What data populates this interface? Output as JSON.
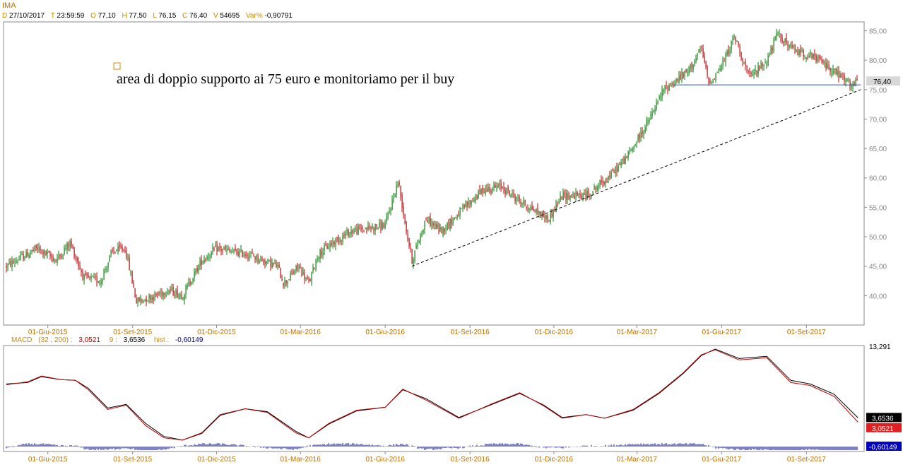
{
  "header": {
    "symbol": "IMA",
    "fields": [
      {
        "key": "D",
        "value": "27/10/2017"
      },
      {
        "key": "T",
        "value": "23:59:59"
      },
      {
        "key": "O",
        "value": "77,10"
      },
      {
        "key": "H",
        "value": "77,50"
      },
      {
        "key": "L",
        "value": "76,15"
      },
      {
        "key": "C",
        "value": "76,40"
      },
      {
        "key": "V",
        "value": "54695"
      },
      {
        "key": "Var%",
        "value": "-0,90791"
      }
    ]
  },
  "annotation": "area di doppio supporto ai 75 euro e monitoriamo per il buy",
  "macd_header": {
    "label": "MACD",
    "params": "(32 , 200) :",
    "macd_value": "3,0521",
    "signal_label": "9 :",
    "signal_value": "3,6536",
    "hist_label": "hist :",
    "hist_value": "-0,60149"
  },
  "colors": {
    "up": "#008000",
    "down": "#c00000",
    "macd": "#c00000",
    "signal": "#000000",
    "hist": "#00008b",
    "support": "#3050a0"
  },
  "chart_data": [
    {
      "type": "candlestick",
      "title": "IMA",
      "x_ticks": [
        "01-Giu-2015",
        "01-Set-2015",
        "01-Dic-2015",
        "01-Mar-2016",
        "01-Giu-2016",
        "01-Set-2016",
        "01-Dic-2016",
        "01-Mar-2017",
        "01-Giu-2017",
        "01-Set-2017"
      ],
      "y_ticks": [
        "40,00",
        "45,00",
        "50,00",
        "55,00",
        "60,00",
        "65,00",
        "70,00",
        "75,00",
        "80,00",
        "85,00"
      ],
      "ylim": [
        35,
        86.5
      ],
      "last_price_label": "76,40",
      "close_path": [
        [
          "2015-04-17",
          45.0
        ],
        [
          "2015-05-20",
          48.0
        ],
        [
          "2015-06-10",
          46.0
        ],
        [
          "2015-06-25",
          49.0
        ],
        [
          "2015-07-10",
          43.0
        ],
        [
          "2015-07-28",
          42.5
        ],
        [
          "2015-08-10",
          47.5
        ],
        [
          "2015-08-24",
          48.0
        ],
        [
          "2015-09-05",
          39.0
        ],
        [
          "2015-09-25",
          40.0
        ],
        [
          "2015-10-10",
          41.0
        ],
        [
          "2015-10-25",
          40.0
        ],
        [
          "2015-11-15",
          46.0
        ],
        [
          "2015-12-01",
          48.0
        ],
        [
          "2015-12-15",
          47.5
        ],
        [
          "2016-01-05",
          47.0
        ],
        [
          "2016-01-20",
          46.0
        ],
        [
          "2016-02-05",
          45.0
        ],
        [
          "2016-02-12",
          42.0
        ],
        [
          "2016-02-28",
          45.0
        ],
        [
          "2016-03-10",
          42.0
        ],
        [
          "2016-03-20",
          47.0
        ],
        [
          "2016-04-05",
          49.0
        ],
        [
          "2016-04-25",
          51.0
        ],
        [
          "2016-05-15",
          51.5
        ],
        [
          "2016-06-01",
          52.0
        ],
        [
          "2016-06-15",
          59.5
        ],
        [
          "2016-06-24",
          51.0
        ],
        [
          "2016-06-30",
          46.0
        ],
        [
          "2016-07-15",
          53.0
        ],
        [
          "2016-08-01",
          51.0
        ],
        [
          "2016-08-20",
          54.0
        ],
        [
          "2016-09-15",
          58.0
        ],
        [
          "2016-10-05",
          58.5
        ],
        [
          "2016-10-25",
          56.0
        ],
        [
          "2016-11-15",
          54.0
        ],
        [
          "2016-11-25",
          53.0
        ],
        [
          "2016-12-10",
          57.0
        ],
        [
          "2017-01-05",
          57.0
        ],
        [
          "2017-02-01",
          60.5
        ],
        [
          "2017-02-20",
          64.0
        ],
        [
          "2017-03-15",
          70.0
        ],
        [
          "2017-03-30",
          75.0
        ],
        [
          "2017-04-25",
          78.0
        ],
        [
          "2017-05-10",
          82.0
        ],
        [
          "2017-05-18",
          76.0
        ],
        [
          "2017-06-01",
          79.0
        ],
        [
          "2017-06-15",
          84.0
        ],
        [
          "2017-07-01",
          77.0
        ],
        [
          "2017-07-20",
          80.0
        ],
        [
          "2017-08-01",
          84.5
        ],
        [
          "2017-08-15",
          82.0
        ],
        [
          "2017-09-15",
          80.0
        ],
        [
          "2017-10-10",
          77.0
        ],
        [
          "2017-10-20",
          75.5
        ],
        [
          "2017-10-27",
          76.4
        ]
      ],
      "support_line": {
        "y": 75.8,
        "from": "2017-04-10",
        "to": "2017-10-30"
      },
      "trend_line": {
        "from": [
          "2016-06-30",
          45.0
        ],
        "to": [
          "2017-10-30",
          75.0
        ]
      }
    },
    {
      "type": "line",
      "title": "MACD",
      "series": [
        {
          "name": "MACD",
          "values": [
            [
              "2015-04-17",
              8.2
            ],
            [
              "2015-05-10",
              8.6
            ],
            [
              "2015-05-25",
              9.4
            ],
            [
              "2015-06-15",
              8.9
            ],
            [
              "2015-07-01",
              8.8
            ],
            [
              "2015-07-15",
              7.5
            ],
            [
              "2015-08-05",
              4.8
            ],
            [
              "2015-08-25",
              5.4
            ],
            [
              "2015-09-15",
              2.6
            ],
            [
              "2015-10-05",
              0.9
            ],
            [
              "2015-10-25",
              0.6
            ],
            [
              "2015-11-15",
              1.6
            ],
            [
              "2015-12-05",
              4.1
            ],
            [
              "2016-01-01",
              4.9
            ],
            [
              "2016-01-25",
              4.4
            ],
            [
              "2016-02-25",
              1.6
            ],
            [
              "2016-03-10",
              0.9
            ],
            [
              "2016-04-01",
              2.9
            ],
            [
              "2016-05-01",
              4.7
            ],
            [
              "2016-06-01",
              5.1
            ],
            [
              "2016-06-20",
              7.6
            ],
            [
              "2016-07-15",
              6.1
            ],
            [
              "2016-08-20",
              3.6
            ],
            [
              "2016-09-25",
              5.6
            ],
            [
              "2016-10-25",
              7.1
            ],
            [
              "2016-11-20",
              5.3
            ],
            [
              "2016-12-10",
              3.6
            ],
            [
              "2017-01-05",
              4.1
            ],
            [
              "2017-01-25",
              3.6
            ],
            [
              "2017-02-25",
              4.8
            ],
            [
              "2017-03-25",
              7.1
            ],
            [
              "2017-04-20",
              9.8
            ],
            [
              "2017-05-10",
              12.3
            ],
            [
              "2017-05-25",
              13.0
            ],
            [
              "2017-06-20",
              11.6
            ],
            [
              "2017-07-20",
              11.9
            ],
            [
              "2017-08-15",
              8.5
            ],
            [
              "2017-09-05",
              8.1
            ],
            [
              "2017-10-01",
              6.6
            ],
            [
              "2017-10-27",
              3.05
            ]
          ]
        },
        {
          "name": "Signal",
          "values": [
            [
              "2015-04-17",
              8.3
            ],
            [
              "2015-05-10",
              8.5
            ],
            [
              "2015-05-25",
              9.3
            ],
            [
              "2015-06-15",
              8.9
            ],
            [
              "2015-07-01",
              8.8
            ],
            [
              "2015-07-15",
              7.7
            ],
            [
              "2015-08-05",
              5.0
            ],
            [
              "2015-08-25",
              5.5
            ],
            [
              "2015-09-15",
              2.9
            ],
            [
              "2015-10-05",
              1.1
            ],
            [
              "2015-10-25",
              0.6
            ],
            [
              "2015-11-15",
              1.5
            ],
            [
              "2015-12-05",
              4.0
            ],
            [
              "2016-01-01",
              4.9
            ],
            [
              "2016-01-25",
              4.5
            ],
            [
              "2016-02-25",
              1.8
            ],
            [
              "2016-03-10",
              0.9
            ],
            [
              "2016-04-01",
              2.8
            ],
            [
              "2016-05-01",
              4.6
            ],
            [
              "2016-06-01",
              5.1
            ],
            [
              "2016-06-20",
              7.5
            ],
            [
              "2016-07-15",
              6.3
            ],
            [
              "2016-08-20",
              3.7
            ],
            [
              "2016-09-25",
              5.5
            ],
            [
              "2016-10-25",
              7.0
            ],
            [
              "2016-11-20",
              5.4
            ],
            [
              "2016-12-10",
              3.7
            ],
            [
              "2017-01-05",
              4.1
            ],
            [
              "2017-01-25",
              3.6
            ],
            [
              "2017-02-25",
              4.7
            ],
            [
              "2017-03-25",
              7.0
            ],
            [
              "2017-04-20",
              9.7
            ],
            [
              "2017-05-10",
              12.2
            ],
            [
              "2017-05-25",
              13.1
            ],
            [
              "2017-06-20",
              11.8
            ],
            [
              "2017-07-20",
              12.1
            ],
            [
              "2017-08-15",
              8.8
            ],
            [
              "2017-09-05",
              8.3
            ],
            [
              "2017-10-01",
              6.9
            ],
            [
              "2017-10-27",
              3.65
            ]
          ]
        }
      ],
      "hist_range": [
        -0.9,
        0.9
      ],
      "y_top_label": "13,291",
      "ylim": [
        0,
        13.291
      ],
      "value_labels": [
        "3,6536",
        "3,0521",
        "-0,60149"
      ]
    }
  ]
}
